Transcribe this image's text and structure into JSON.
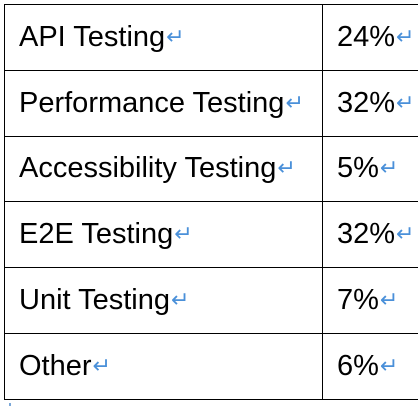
{
  "table": {
    "rows": [
      {
        "label": "API Testing",
        "value": "24%"
      },
      {
        "label": "Performance Testing",
        "value": "32%"
      },
      {
        "label": "Accessibility Testing",
        "value": "5%"
      },
      {
        "label": "E2E Testing",
        "value": "32%"
      },
      {
        "label": "Unit Testing",
        "value": "7%"
      },
      {
        "label": "Other",
        "value": "6%"
      }
    ]
  },
  "marks": {
    "paragraph_mark": "↵"
  },
  "colors": {
    "text": "#000000",
    "border": "#000000",
    "formatting_mark": "#4a90d9"
  }
}
